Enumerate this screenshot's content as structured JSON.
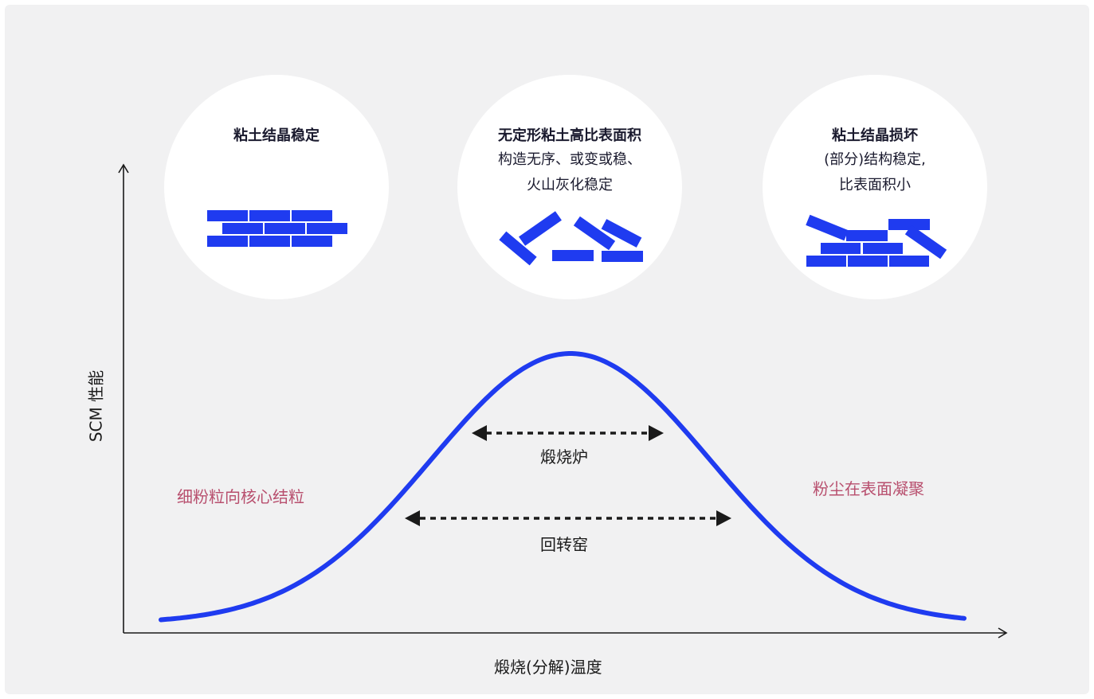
{
  "colors": {
    "background": "#f1f1f2",
    "curve": "#1f3bf0",
    "brick": "#1f3bf0",
    "pink_text": "#b84f6e",
    "axis": "#1a1a1a"
  },
  "stages": [
    {
      "title": "粘土结晶稳定",
      "lines": []
    },
    {
      "title": "无定形粘土高比表面积",
      "lines": [
        "构造无序、或变或稳、",
        "火山灰化稳定"
      ]
    },
    {
      "title": "粘土结晶损坏",
      "lines": [
        "(部分)结构稳定,",
        "比表面积小"
      ]
    }
  ],
  "axes": {
    "x_label": "煅烧(分解)温度",
    "y_label": "SCM 性能"
  },
  "ranges": {
    "calciner": "煅烧炉",
    "rotary_kiln": "回转窑"
  },
  "side_notes": {
    "left": "细粉粒向核心结粒",
    "right": "粉尘在表面凝聚"
  }
}
